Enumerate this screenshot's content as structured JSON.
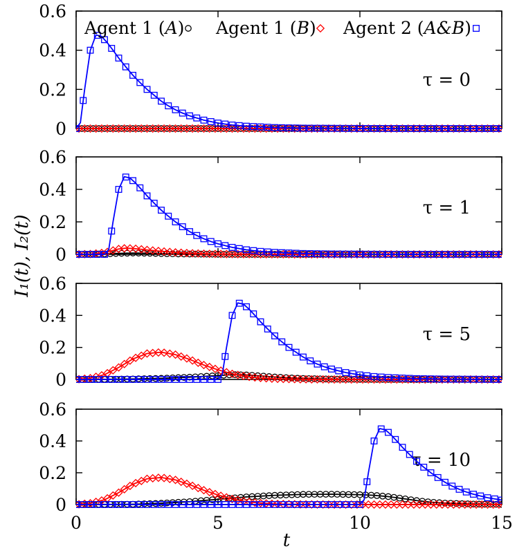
{
  "chart_data": {
    "type": "line",
    "xlabel": "t",
    "ylabel": "I₁(t), I₂(t)",
    "xlim": [
      0,
      15
    ],
    "ylim": [
      0,
      0.6
    ],
    "xticks": [
      0,
      5,
      10,
      15
    ],
    "xtick_labels": [
      "0",
      "5",
      "10",
      "15"
    ],
    "yticks": [
      0,
      0.2,
      0.4,
      0.6
    ],
    "ytick_labels": [
      "0",
      "0.2",
      "0.4",
      "0.6"
    ],
    "legend_position": "top",
    "legend": [
      {
        "name": "Agent 1 (A)",
        "text_main": "Agent 1 (",
        "text_italic": "A",
        "text_end": ")",
        "marker": "circle",
        "color": "#000000"
      },
      {
        "name": "Agent 1 (B)",
        "text_main": "Agent 1 (",
        "text_italic": "B",
        "text_end": ")",
        "marker": "diamond",
        "color": "#ff0000"
      },
      {
        "name": "Agent 2 (A&B)",
        "text_main": "Agent 2 (",
        "text_italic": "A&B",
        "text_end": ")",
        "marker": "square",
        "color": "#0000ff"
      }
    ],
    "panels": [
      {
        "label": "τ = 0",
        "tau": 0,
        "series": [
          {
            "name": "Agent 1 (A)",
            "x": [
              0,
              15
            ],
            "y": [
              0,
              0
            ]
          },
          {
            "name": "Agent 1 (B)",
            "x": [
              0,
              15
            ],
            "y": [
              0,
              0
            ]
          },
          {
            "name": "Agent 2 (A&B)",
            "x": [
              0,
              0.15,
              0.3,
              0.5,
              0.7,
              0.9,
              1.1,
              1.3,
              1.5,
              1.75,
              2.0,
              2.25,
              2.5,
              2.75,
              3.0,
              3.25,
              3.5,
              3.75,
              4.0,
              4.5,
              5.0,
              5.5,
              6.0,
              7.0,
              8.0,
              10.0,
              12.0,
              15.0
            ],
            "y": [
              0,
              0.03,
              0.2,
              0.4,
              0.478,
              0.47,
              0.438,
              0.4,
              0.36,
              0.315,
              0.272,
              0.235,
              0.2,
              0.17,
              0.14,
              0.116,
              0.096,
              0.079,
              0.065,
              0.043,
              0.028,
              0.018,
              0.012,
              0.005,
              0.002,
              0.0003,
              0,
              0
            ]
          }
        ]
      },
      {
        "label": "τ = 1",
        "tau": 1,
        "series": [
          {
            "name": "Agent 1 (A)",
            "x": [
              0,
              0.5,
              1.0,
              1.5,
              2.0,
              2.5,
              3.0,
              3.5,
              4.0,
              5.0,
              6.0,
              8.0,
              15.0
            ],
            "y": [
              0,
              0.001,
              0.003,
              0.006,
              0.008,
              0.007,
              0.005,
              0.003,
              0.002,
              0.001,
              0,
              0,
              0
            ]
          },
          {
            "name": "Agent 1 (B)",
            "x": [
              0,
              0.5,
              1.0,
              1.25,
              1.5,
              1.75,
              2.0,
              2.25,
              2.5,
              3.0,
              3.5,
              4.0,
              4.5,
              5.0,
              6.0,
              8.0,
              15.0
            ],
            "y": [
              0,
              0.002,
              0.01,
              0.022,
              0.033,
              0.038,
              0.036,
              0.032,
              0.027,
              0.019,
              0.012,
              0.007,
              0.004,
              0.002,
              0.001,
              0,
              0
            ]
          },
          {
            "name": "Agent 2 (A&B)",
            "x": [
              0,
              1.0,
              1.15,
              1.3,
              1.5,
              1.7,
              1.9,
              2.1,
              2.3,
              2.5,
              2.75,
              3.0,
              3.25,
              3.5,
              3.75,
              4.0,
              4.25,
              4.5,
              4.75,
              5.0,
              5.5,
              6.0,
              6.5,
              7.0,
              8.0,
              9.0,
              11.0,
              13.0,
              15.0
            ],
            "y": [
              0,
              0,
              0.03,
              0.2,
              0.4,
              0.478,
              0.47,
              0.438,
              0.4,
              0.36,
              0.315,
              0.272,
              0.235,
              0.2,
              0.17,
              0.14,
              0.116,
              0.096,
              0.079,
              0.065,
              0.043,
              0.028,
              0.018,
              0.012,
              0.005,
              0.002,
              0.0003,
              0,
              0
            ]
          }
        ]
      },
      {
        "label": "τ = 5",
        "tau": 5,
        "series": [
          {
            "name": "Agent 1 (A)",
            "x": [
              0,
              1.0,
              2.0,
              3.0,
              4.0,
              5.0,
              5.5,
              6.0,
              6.5,
              7.0,
              7.5,
              8.0,
              9.0,
              10.0,
              12.0,
              15.0
            ],
            "y": [
              0,
              0.001,
              0.003,
              0.007,
              0.014,
              0.024,
              0.03,
              0.028,
              0.022,
              0.015,
              0.01,
              0.006,
              0.002,
              0.001,
              0,
              0
            ]
          },
          {
            "name": "Agent 1 (B)",
            "x": [
              0,
              0.5,
              1.0,
              1.5,
              2.0,
              2.5,
              3.0,
              3.5,
              4.0,
              4.5,
              5.0,
              5.5,
              6.0,
              6.5,
              7.0,
              8.0,
              9.0,
              10.0,
              15.0
            ],
            "y": [
              0,
              0.008,
              0.03,
              0.075,
              0.128,
              0.162,
              0.17,
              0.155,
              0.125,
              0.09,
              0.06,
              0.035,
              0.018,
              0.009,
              0.004,
              0.001,
              0,
              0,
              0
            ]
          },
          {
            "name": "Agent 2 (A&B)",
            "x": [
              0,
              5.0,
              5.15,
              5.3,
              5.5,
              5.7,
              5.9,
              6.1,
              6.3,
              6.5,
              6.75,
              7.0,
              7.25,
              7.5,
              7.75,
              8.0,
              8.25,
              8.5,
              8.75,
              9.0,
              9.5,
              10.0,
              10.5,
              11.0,
              12.0,
              13.0,
              15.0
            ],
            "y": [
              0,
              0,
              0.03,
              0.2,
              0.4,
              0.478,
              0.47,
              0.438,
              0.4,
              0.36,
              0.315,
              0.272,
              0.235,
              0.2,
              0.17,
              0.14,
              0.116,
              0.096,
              0.079,
              0.065,
              0.043,
              0.028,
              0.018,
              0.012,
              0.005,
              0.002,
              0
            ]
          }
        ]
      },
      {
        "label": "τ = 10",
        "tau": 10,
        "series": [
          {
            "name": "Agent 1 (A)",
            "x": [
              0,
              2.0,
              3.0,
              4.0,
              5.0,
              6.0,
              7.0,
              8.0,
              9.0,
              10.0,
              10.5,
              11.0,
              11.5,
              12.0,
              12.5,
              13.0,
              14.0,
              15.0
            ],
            "y": [
              0,
              0.002,
              0.008,
              0.018,
              0.033,
              0.048,
              0.058,
              0.064,
              0.065,
              0.062,
              0.058,
              0.05,
              0.038,
              0.025,
              0.015,
              0.009,
              0.003,
              0.001
            ]
          },
          {
            "name": "Agent 1 (B)",
            "x": [
              0,
              0.5,
              1.0,
              1.5,
              2.0,
              2.5,
              3.0,
              3.5,
              4.0,
              4.5,
              5.0,
              5.5,
              6.0,
              6.5,
              7.0,
              8.0,
              9.0,
              10.0,
              15.0
            ],
            "y": [
              0,
              0.008,
              0.03,
              0.075,
              0.128,
              0.162,
              0.17,
              0.155,
              0.125,
              0.09,
              0.06,
              0.035,
              0.018,
              0.009,
              0.004,
              0.001,
              0,
              0,
              0
            ]
          },
          {
            "name": "Agent 2 (A&B)",
            "x": [
              0,
              10.0,
              10.15,
              10.3,
              10.5,
              10.7,
              10.9,
              11.1,
              11.3,
              11.5,
              11.75,
              12.0,
              12.25,
              12.5,
              12.75,
              13.0,
              13.25,
              13.5,
              13.75,
              14.0,
              14.5,
              15.0
            ],
            "y": [
              0,
              0,
              0.03,
              0.2,
              0.4,
              0.478,
              0.47,
              0.438,
              0.4,
              0.36,
              0.315,
              0.272,
              0.235,
              0.2,
              0.17,
              0.14,
              0.116,
              0.096,
              0.079,
              0.065,
              0.043,
              0.028
            ]
          }
        ]
      }
    ]
  }
}
